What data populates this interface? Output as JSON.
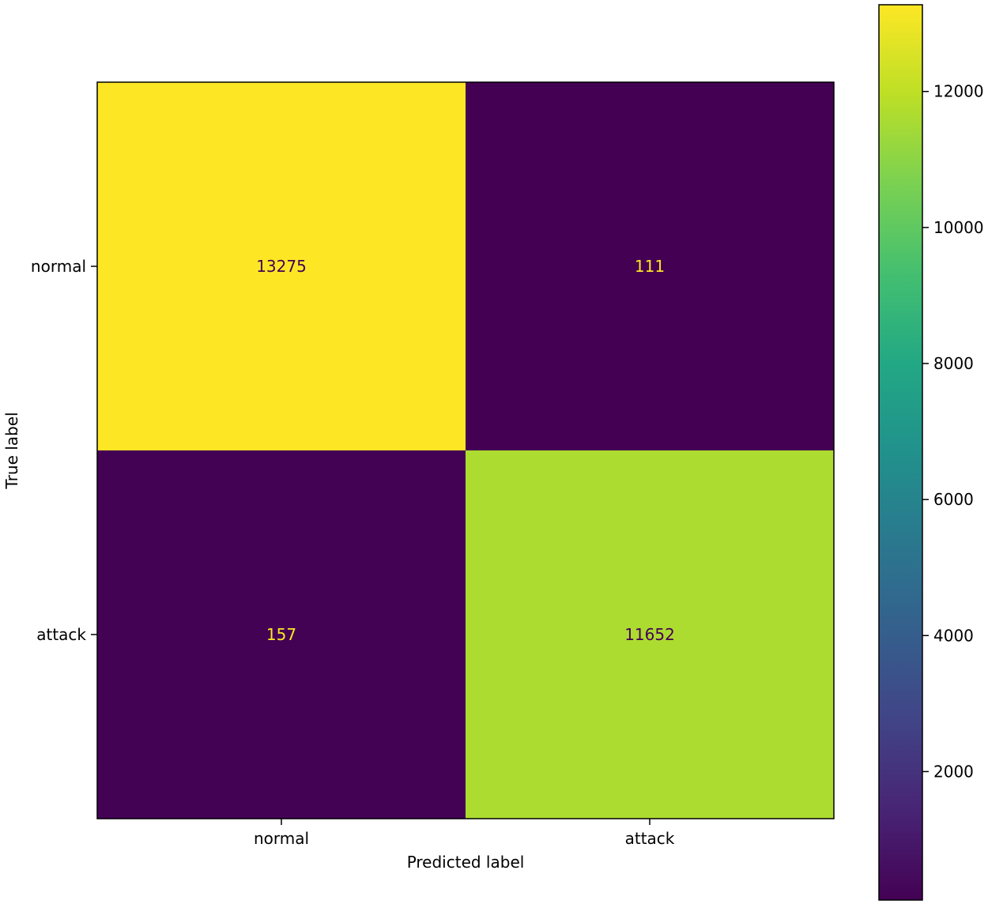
{
  "chart_data": {
    "type": "heatmap",
    "title": "",
    "xlabel": "Predicted label",
    "ylabel": "True label",
    "x_categories": [
      "normal",
      "attack"
    ],
    "y_categories": [
      "normal",
      "attack"
    ],
    "values": [
      [
        13275,
        111
      ],
      [
        157,
        11652
      ]
    ],
    "colormap": "viridis",
    "colorbar": {
      "range": [
        111,
        13275
      ],
      "ticks": [
        2000,
        4000,
        6000,
        8000,
        10000,
        12000
      ],
      "tick_labels": [
        "2000",
        "4000",
        "6000",
        "8000",
        "10000",
        "12000"
      ]
    },
    "colors": {
      "high": "#fde725",
      "mid": "#21918c",
      "low": "#440154",
      "text_on_dark": "#fde725",
      "text_on_light": "#440154"
    },
    "grid": false
  }
}
